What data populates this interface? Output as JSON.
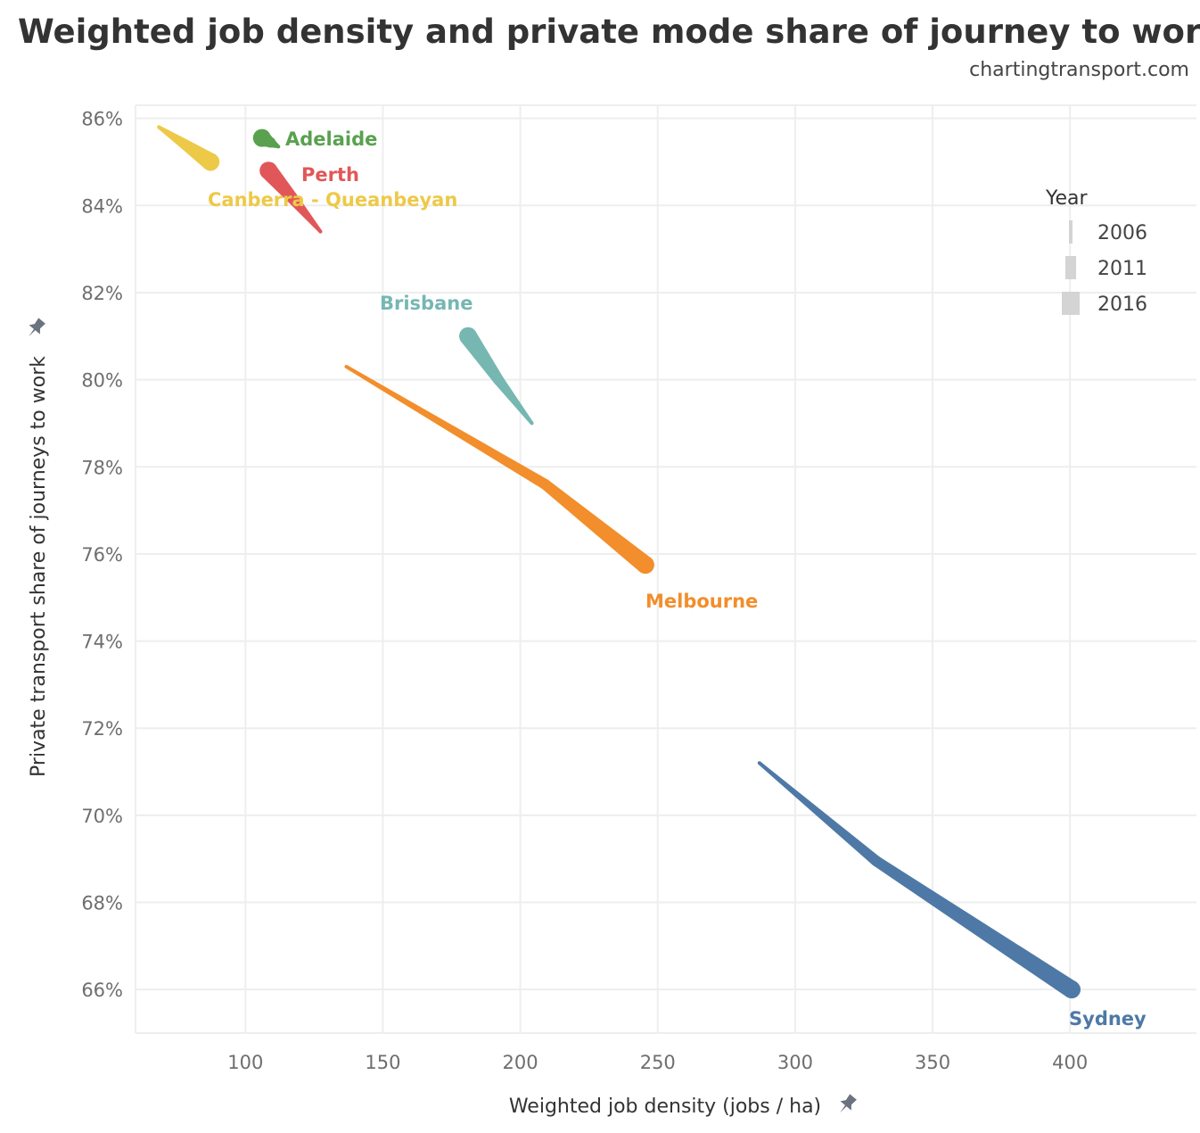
{
  "chart_data": {
    "type": "line",
    "title": "Weighted job density and private mode share of journey to work",
    "subtitle": "chartingtransport.com",
    "xlabel": "Weighted job density (jobs / ha)",
    "ylabel": "Private transport share of journeys to work",
    "xlim": [
      60,
      446
    ],
    "ylim": [
      65.0,
      86.3
    ],
    "xticks": [
      100,
      150,
      200,
      250,
      300,
      350,
      400
    ],
    "yticks": [
      66,
      68,
      70,
      72,
      74,
      76,
      78,
      80,
      82,
      84,
      86
    ],
    "ytick_format": "%",
    "grid": true,
    "years": [
      "2006",
      "2011",
      "2016"
    ],
    "legend": {
      "title": "Year",
      "placement": "top-right",
      "entries": [
        "2006",
        "2011",
        "2016"
      ]
    },
    "series": [
      {
        "name": "Sydney",
        "color": "#4e79a7",
        "x": [
          287,
          329.5,
          400.6
        ],
        "y": [
          71.2,
          68.95,
          66.0
        ]
      },
      {
        "name": "Melbourne",
        "color": "#f28e2b",
        "x": [
          136.7,
          209,
          245.5
        ],
        "y": [
          80.3,
          77.6,
          75.75
        ]
      },
      {
        "name": "Brisbane",
        "color": "#76b7b2",
        "x": [
          204.2,
          192,
          181
        ],
        "y": [
          79.0,
          80.0,
          81.0
        ]
      },
      {
        "name": "Perth",
        "color": "#e15759",
        "x": [
          127.3,
          118,
          108.4
        ],
        "y": [
          83.4,
          84.1,
          84.8
        ]
      },
      {
        "name": "Adelaide",
        "color": "#59a14f",
        "x": [
          112,
          109,
          106
        ],
        "y": [
          85.35,
          85.45,
          85.55
        ]
      },
      {
        "name": "Canberra - Queanbeyan",
        "color": "#edc948",
        "x": [
          68.5,
          78,
          87.3
        ],
        "y": [
          85.8,
          85.4,
          85.0
        ]
      }
    ]
  }
}
